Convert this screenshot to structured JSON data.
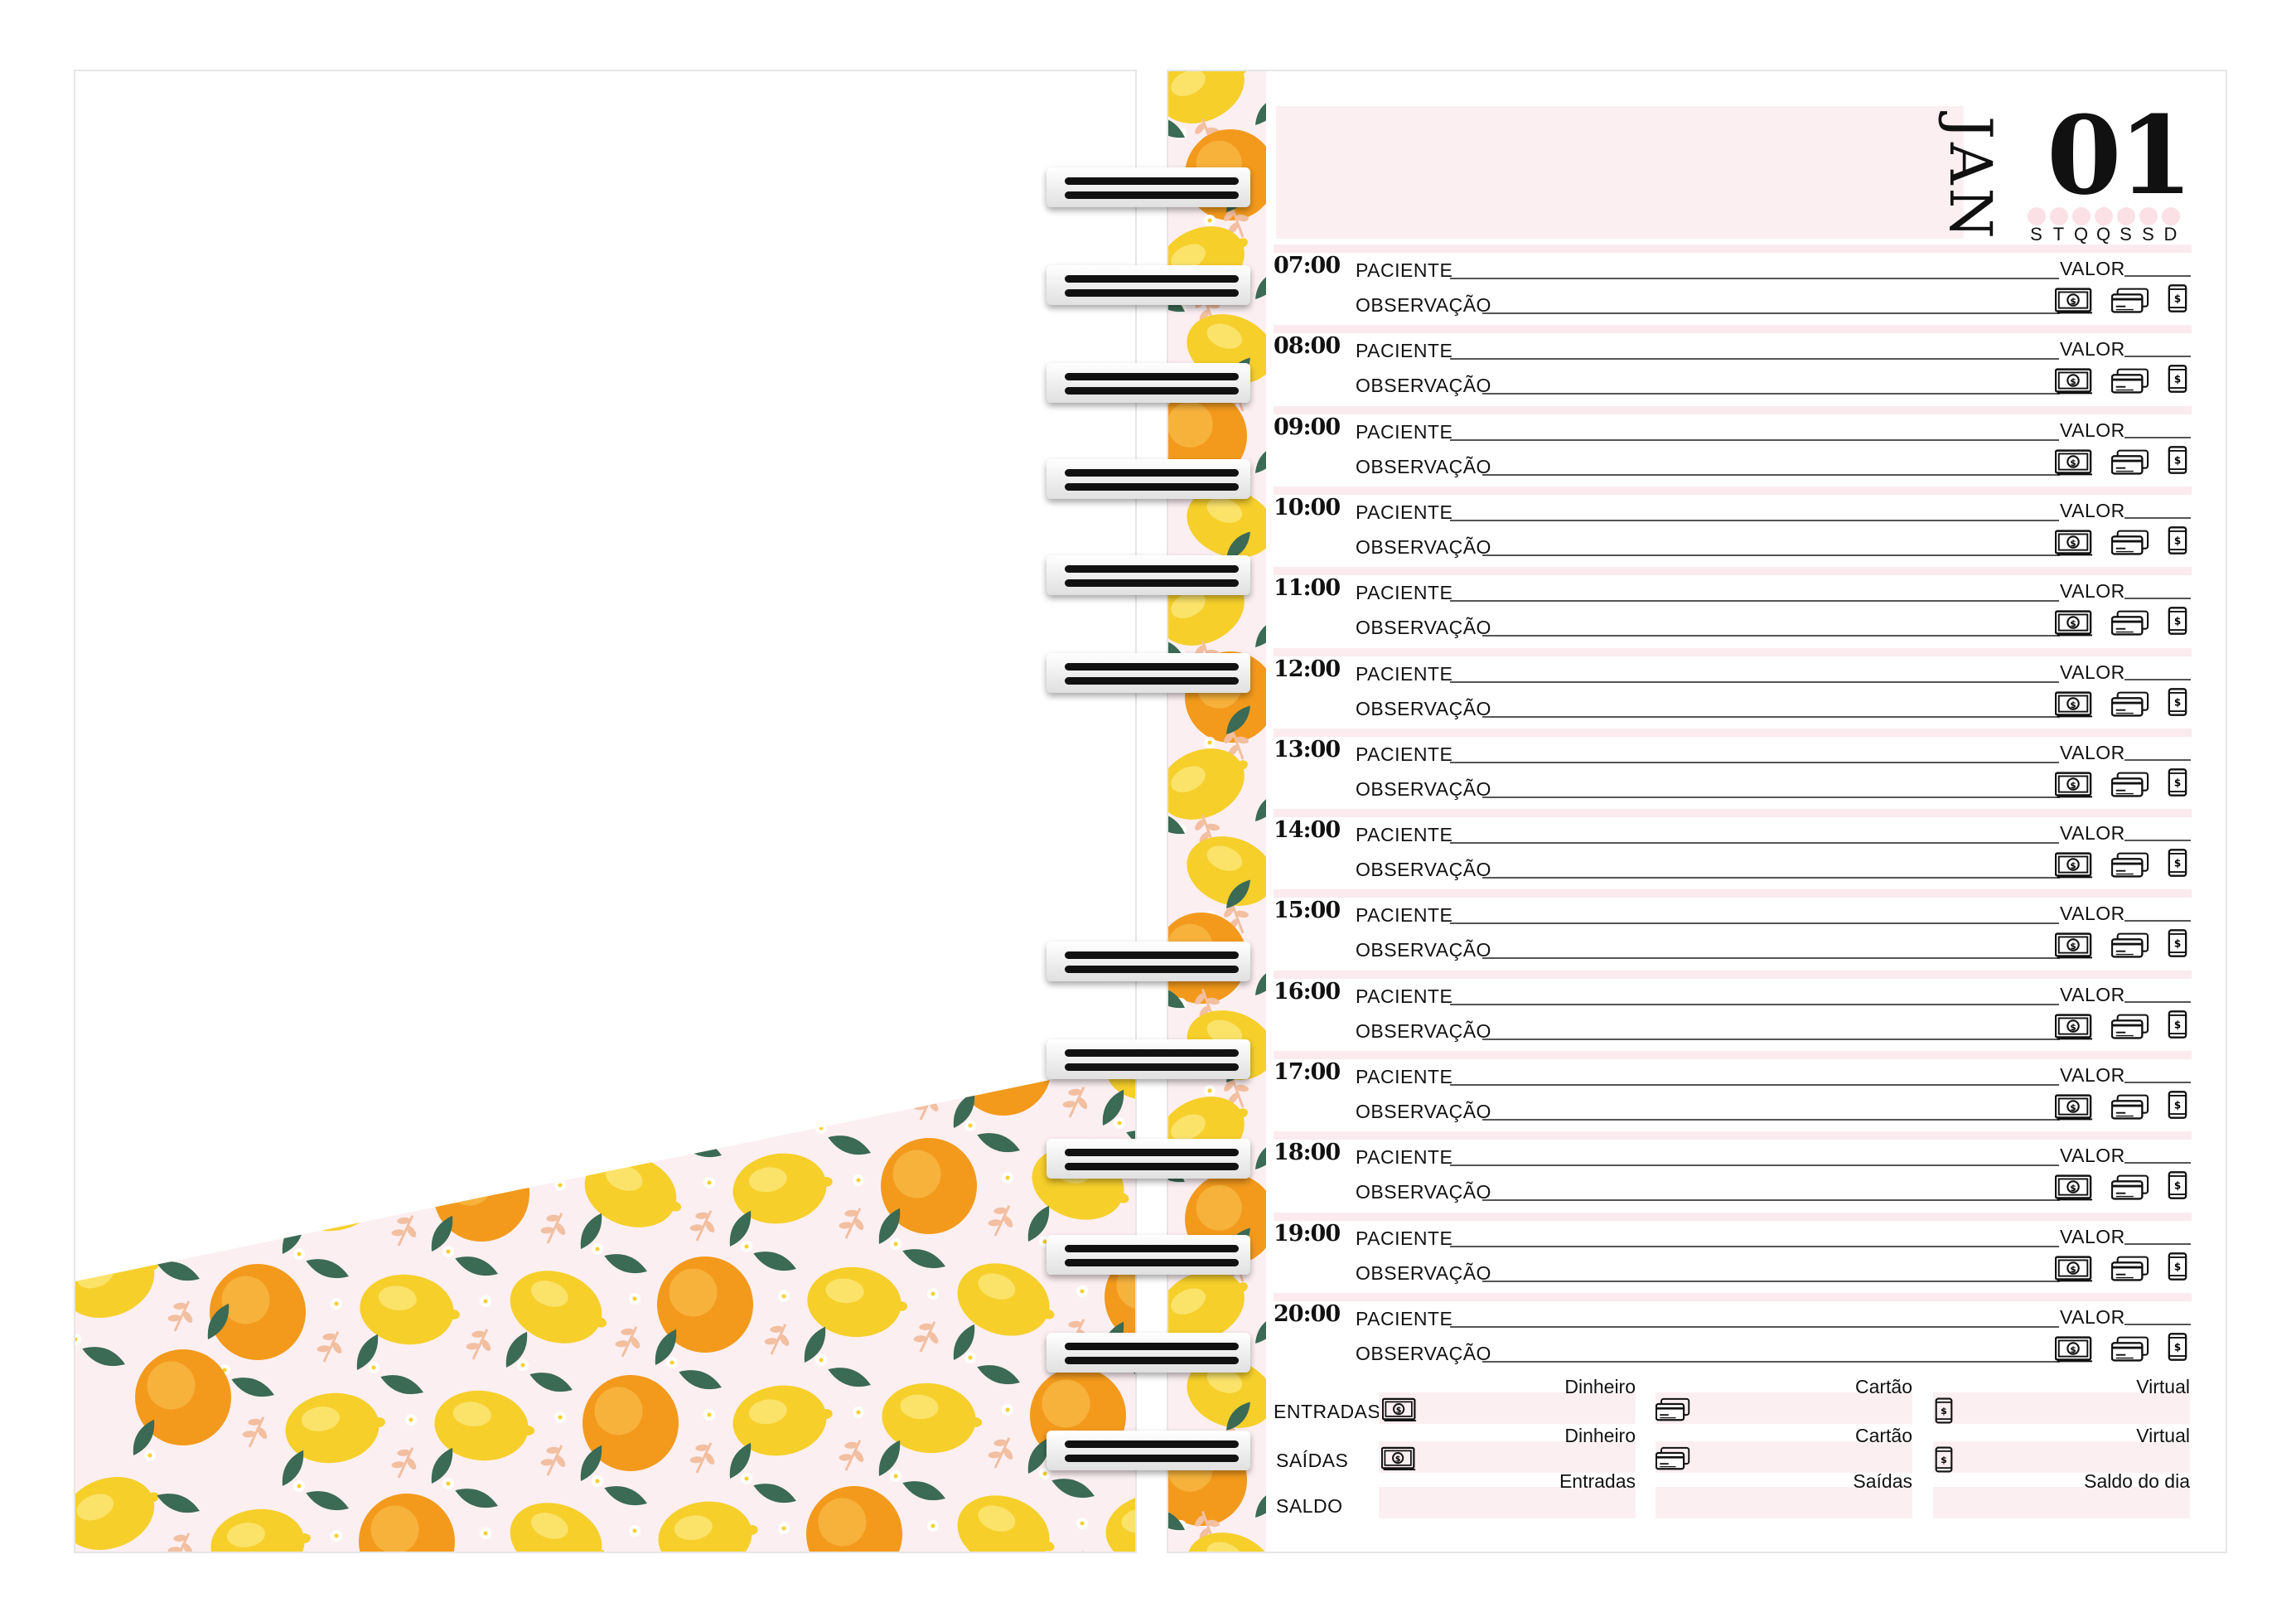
{
  "header": {
    "month": "JAN",
    "day": "01",
    "weekdays": [
      "S",
      "T",
      "Q",
      "Q",
      "S",
      "S",
      "D"
    ]
  },
  "slot_labels": {
    "patient": "PACIENTE",
    "note": "OBSERVAÇÃO",
    "value": "VALOR"
  },
  "slots": [
    "07:00",
    "08:00",
    "09:00",
    "10:00",
    "11:00",
    "12:00",
    "13:00",
    "14:00",
    "15:00",
    "16:00",
    "17:00",
    "18:00",
    "19:00",
    "20:00"
  ],
  "payment_icons": [
    "cash-icon",
    "card-icon",
    "phone-payment-icon"
  ],
  "summary": {
    "rows": [
      {
        "label": "ENTRADAS",
        "cells": [
          "Dinheiro",
          "Cartão",
          "Virtual"
        ]
      },
      {
        "label": "SAÍDAS",
        "cells": [
          "Dinheiro",
          "Cartão",
          "Virtual"
        ]
      },
      {
        "label": "SALDO",
        "cells": [
          "Entradas",
          "Saídas",
          "Saldo do dia"
        ]
      }
    ]
  },
  "colors": {
    "pink": "#fceff2",
    "lemon": "#f6cf2b",
    "orange": "#f39a1c",
    "leaf": "#3b6a55"
  }
}
